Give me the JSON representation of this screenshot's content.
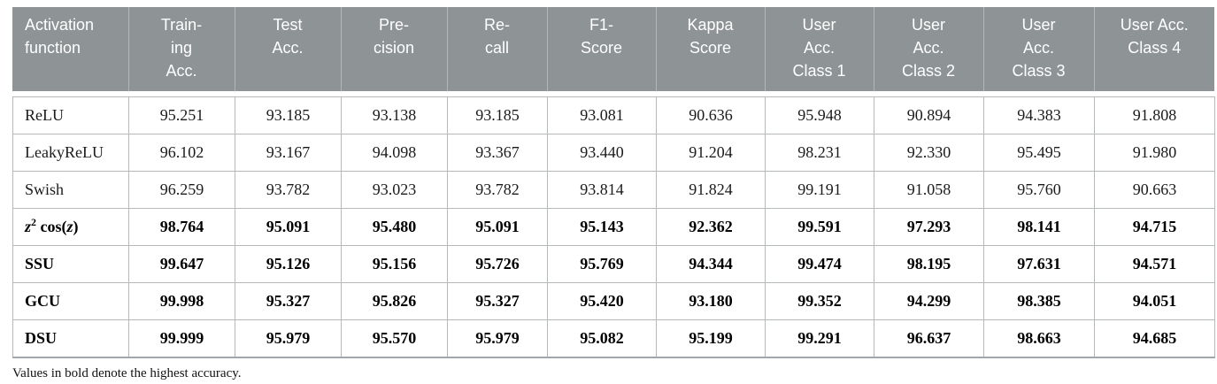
{
  "table": {
    "columns": [
      {
        "label": "Activation\nfunction"
      },
      {
        "label": "Train-\ning\nAcc."
      },
      {
        "label": "Test\nAcc."
      },
      {
        "label": "Pre-\ncision"
      },
      {
        "label": "Re-\ncall"
      },
      {
        "label": "F1-\nScore"
      },
      {
        "label": "Kappa\nScore"
      },
      {
        "label": "User\nAcc.\nClass 1"
      },
      {
        "label": "User\nAcc.\nClass 2"
      },
      {
        "label": "User\nAcc.\nClass 3"
      },
      {
        "label": "User Acc.\nClass 4"
      }
    ],
    "rows": [
      {
        "label": "ReLU",
        "bold": false,
        "math": false,
        "values": [
          "95.251",
          "93.185",
          "93.138",
          "93.185",
          "93.081",
          "90.636",
          "95.948",
          "90.894",
          "94.383",
          "91.808"
        ]
      },
      {
        "label": "LeakyReLU",
        "bold": false,
        "math": false,
        "values": [
          "96.102",
          "93.167",
          "94.098",
          "93.367",
          "93.440",
          "91.204",
          "98.231",
          "92.330",
          "95.495",
          "91.980"
        ]
      },
      {
        "label": "Swish",
        "bold": false,
        "math": false,
        "values": [
          "96.259",
          "93.782",
          "93.023",
          "93.782",
          "93.814",
          "91.824",
          "99.191",
          "91.058",
          "95.760",
          "90.663"
        ]
      },
      {
        "label": "z² cos(z)",
        "bold": true,
        "math": true,
        "values": [
          "98.764",
          "95.091",
          "95.480",
          "95.091",
          "95.143",
          "92.362",
          "99.591",
          "97.293",
          "98.141",
          "94.715"
        ]
      },
      {
        "label": "SSU",
        "bold": true,
        "math": false,
        "values": [
          "99.647",
          "95.126",
          "95.156",
          "95.726",
          "95.769",
          "94.344",
          "99.474",
          "98.195",
          "97.631",
          "94.571"
        ]
      },
      {
        "label": "GCU",
        "bold": true,
        "math": false,
        "values": [
          "99.998",
          "95.327",
          "95.826",
          "95.327",
          "95.420",
          "93.180",
          "99.352",
          "94.299",
          "98.385",
          "94.051"
        ]
      },
      {
        "label": "DSU",
        "bold": true,
        "math": false,
        "values": [
          "99.999",
          "95.979",
          "95.570",
          "95.979",
          "95.082",
          "95.199",
          "99.291",
          "96.637",
          "98.663",
          "94.685"
        ]
      }
    ],
    "footnote": "Values in bold denote the highest accuracy."
  },
  "colors": {
    "header_bg": "#8e9396",
    "header_text": "#ffffff",
    "grid_line": "#b5b9ba",
    "body_text": "#1b1b1b"
  }
}
